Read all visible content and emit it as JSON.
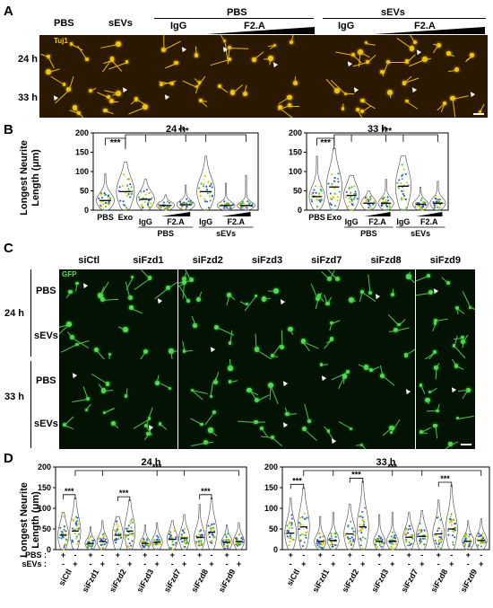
{
  "panels": {
    "A": {
      "label": "A",
      "col_labels": [
        "PBS",
        "sEVs",
        "IgG",
        "IgG"
      ],
      "group_headers": [
        "PBS",
        "sEVs"
      ],
      "f2a_labels": [
        "F2.A",
        "F2.A"
      ],
      "row_labels": [
        "24 h",
        "33 h"
      ],
      "stain": "Tuj1"
    },
    "B": {
      "label": "B",
      "ylabel": "Longest Neurite\nLength (μm)",
      "ylabel_line1": "Longest Neurite",
      "ylabel_line2": "Length (μm)",
      "sig": "***",
      "subplots": [
        {
          "title": "24 h",
          "x_labels": [
            "PBS",
            "Exo"
          ],
          "sub_labels": [
            "IgG",
            "F2.A",
            "IgG",
            "F2.A"
          ],
          "group_labels": [
            "PBS",
            "sEVs"
          ]
        },
        {
          "title": "33 h",
          "x_labels": [
            "PBS",
            "Exo"
          ],
          "sub_labels": [
            "IgG",
            "F2.A",
            "IgG",
            "F2.A"
          ],
          "group_labels": [
            "PBS",
            "sEVs"
          ]
        }
      ]
    },
    "C": {
      "label": "C",
      "col_labels": [
        "siCtl",
        "siFzd1",
        "siFzd2",
        "siFzd3",
        "siFzd7",
        "siFzd8",
        "siFzd9"
      ],
      "time_labels": [
        "24 h",
        "33 h"
      ],
      "row_labels": [
        "PBS",
        "sEVs",
        "PBS",
        "sEVs"
      ],
      "stain": "GFP"
    },
    "D": {
      "label": "D",
      "ylabel_line1": "Longest Neurite",
      "ylabel_line2": "Length (μm)",
      "sig": "***",
      "pbs_label": "PBS :",
      "sevs_label": "sEVs :",
      "plus": "+",
      "minus": "-",
      "subplots": [
        {
          "title": "24 h",
          "x_labels": [
            "siCtl",
            "siFzd1",
            "siFzd2",
            "siFzd3",
            "siFzd7",
            "siFzd8",
            "siFzd9"
          ]
        },
        {
          "title": "33 h",
          "x_labels": [
            "siCtl",
            "siFzd1",
            "siFzd2",
            "siFzd3",
            "siFzd7",
            "siFzd8",
            "siFzd9"
          ]
        }
      ]
    }
  },
  "chart_data": [
    {
      "type": "violin",
      "panel": "B",
      "title": "24 h",
      "ylabel": "Longest Neurite Length (μm)",
      "ylim": [
        0,
        200
      ],
      "yticks": [
        0,
        50,
        100,
        150,
        200
      ],
      "categories": [
        "PBS",
        "Exo",
        "IgG",
        "F2.A low",
        "F2.A high",
        "IgG",
        "F2.A low",
        "F2.A high"
      ],
      "groups": [
        "",
        "",
        "PBS",
        "PBS",
        "PBS",
        "sEVs",
        "sEVs",
        "sEVs"
      ],
      "medians": [
        25,
        48,
        28,
        12,
        14,
        48,
        12,
        12
      ],
      "max": [
        95,
        125,
        80,
        40,
        65,
        140,
        70,
        90
      ],
      "significance": [
        "PBS vs Exo: ***",
        "Exo vs antibody groups: ***"
      ]
    },
    {
      "type": "violin",
      "panel": "B",
      "title": "33 h",
      "ylabel": "Longest Neurite Length (μm)",
      "ylim": [
        0,
        200
      ],
      "yticks": [
        0,
        50,
        100,
        150,
        200
      ],
      "categories": [
        "PBS",
        "Exo",
        "IgG",
        "F2.A low",
        "F2.A high",
        "IgG",
        "F2.A low",
        "F2.A high"
      ],
      "groups": [
        "",
        "",
        "PBS",
        "PBS",
        "PBS",
        "sEVs",
        "sEVs",
        "sEVs"
      ],
      "medians": [
        35,
        60,
        38,
        18,
        18,
        62,
        15,
        18
      ],
      "max": [
        140,
        160,
        90,
        50,
        80,
        140,
        60,
        75
      ],
      "significance": [
        "PBS vs Exo: ***",
        "Exo vs antibody groups: ***"
      ]
    },
    {
      "type": "violin",
      "panel": "D",
      "title": "24 h",
      "ylabel": "Longest Neurite Length (μm)",
      "ylim": [
        0,
        200
      ],
      "yticks": [
        0,
        50,
        100,
        150,
        200
      ],
      "categories": [
        "siCtl",
        "siFzd1",
        "siFzd2",
        "siFzd3",
        "siFzd7",
        "siFzd8",
        "siFzd9"
      ],
      "series": [
        {
          "name": "PBS",
          "medians": [
            35,
            15,
            35,
            15,
            25,
            30,
            18
          ],
          "max": [
            90,
            55,
            80,
            60,
            70,
            110,
            60
          ]
        },
        {
          "name": "sEVs",
          "medians": [
            45,
            20,
            45,
            18,
            28,
            42,
            20
          ],
          "max": [
            125,
            70,
            120,
            65,
            85,
            125,
            65
          ]
        }
      ],
      "significance": [
        "siCtl PBS vs sEVs: ***",
        "siFzd2 PBS vs sEVs: ***",
        "siFzd8 PBS vs sEVs: ***",
        "siCtl vs siFzd9: ***"
      ]
    },
    {
      "type": "violin",
      "panel": "D",
      "title": "33 h",
      "ylabel": "Longest Neurite Length (μm)",
      "ylim": [
        0,
        200
      ],
      "yticks": [
        0,
        50,
        100,
        150,
        200
      ],
      "categories": [
        "siCtl",
        "siFzd1",
        "siFzd2",
        "siFzd3",
        "siFzd7",
        "siFzd8",
        "siFzd9"
      ],
      "series": [
        {
          "name": "PBS",
          "medians": [
            40,
            20,
            38,
            20,
            30,
            38,
            20
          ],
          "max": [
            125,
            80,
            110,
            85,
            90,
            120,
            70
          ]
        },
        {
          "name": "sEVs",
          "medians": [
            55,
            22,
            55,
            20,
            32,
            50,
            22
          ],
          "max": [
            150,
            90,
            165,
            90,
            95,
            155,
            75
          ]
        }
      ],
      "significance": [
        "siCtl PBS vs sEVs: ***",
        "siFzd2 PBS vs sEVs: ***",
        "siFzd8 PBS vs sEVs: ***",
        "siCtl vs siFzd9: ***"
      ]
    }
  ],
  "colors": {
    "tuj1_bg": "#2b1800",
    "tuj1_signal": "#f6c700",
    "gfp_bg": "#041204",
    "gfp_signal": "#4fe04f",
    "dot_yellow": "#d4c400",
    "dot_blue": "#2a4fd6",
    "dot_green": "#38b44a"
  }
}
